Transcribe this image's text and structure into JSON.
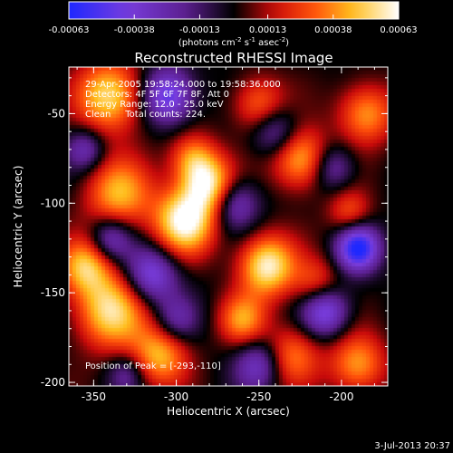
{
  "chart_data": {
    "type": "heatmap",
    "title": "Reconstructed RHESSI Image",
    "xlabel": "Heliocentric X (arcsec)",
    "ylabel": "Heliocentric Y (arcsec)",
    "xlim": [
      -365,
      -172
    ],
    "ylim": [
      -202,
      -24
    ],
    "x_ticks": [
      "-350",
      "-300",
      "-250",
      "-200"
    ],
    "x_tick_values": [
      -350,
      -300,
      -250,
      -200
    ],
    "y_ticks": [
      "-50",
      "-100",
      "-150",
      "-200"
    ],
    "y_tick_values": [
      -50,
      -100,
      -150,
      -200
    ],
    "colorbar": {
      "ticks": [
        "-0.00063",
        "-0.00038",
        "-0.00013",
        "0.00013",
        "0.00038",
        "0.00063"
      ],
      "range": [
        -0.00063,
        0.00063
      ],
      "units_prefix": "(photons cm",
      "units_exp1": "-2",
      "units_mid": " s",
      "units_exp2": "-1",
      "units_mid2": " asec",
      "units_exp3": "-2",
      "units_suffix": ")"
    },
    "annotations": [
      "29-Apr-2005 19:58:24.000 to 19:58:36.000",
      "Detectors: 4F 5F 6F 7F 8F, Att 0",
      "Energy Range: 12.0 - 25.0 keV",
      "Clean     Total counts: 224."
    ],
    "peak_label": "Position of Peak = [-293,-110]",
    "peak_position": [
      -293,
      -110
    ],
    "features": [
      {
        "x": -340,
        "y": -40,
        "v": 0.85,
        "s": 14
      },
      {
        "x": -335,
        "y": -95,
        "v": 0.7,
        "s": 14
      },
      {
        "x": -295,
        "y": -110,
        "v": 1.0,
        "s": 13
      },
      {
        "x": -280,
        "y": -90,
        "v": 0.85,
        "s": 11
      },
      {
        "x": -290,
        "y": -75,
        "v": 0.6,
        "s": 10
      },
      {
        "x": -245,
        "y": -135,
        "v": 0.95,
        "s": 12
      },
      {
        "x": -225,
        "y": -75,
        "v": 0.75,
        "s": 12
      },
      {
        "x": -185,
        "y": -50,
        "v": 0.65,
        "s": 12
      },
      {
        "x": -250,
        "y": -45,
        "v": 0.55,
        "s": 11
      },
      {
        "x": -340,
        "y": -160,
        "v": 0.85,
        "s": 15
      },
      {
        "x": -310,
        "y": -185,
        "v": 0.7,
        "s": 12
      },
      {
        "x": -355,
        "y": -135,
        "v": 0.7,
        "s": 11
      },
      {
        "x": -230,
        "y": -185,
        "v": 0.55,
        "s": 12
      },
      {
        "x": -195,
        "y": -105,
        "v": 0.45,
        "s": 9
      },
      {
        "x": -260,
        "y": -165,
        "v": 0.6,
        "s": 10
      },
      {
        "x": -215,
        "y": -145,
        "v": 0.45,
        "s": 10
      },
      {
        "x": -190,
        "y": -190,
        "v": 0.65,
        "s": 12
      },
      {
        "x": -305,
        "y": -40,
        "v": -0.8,
        "s": 11
      },
      {
        "x": -190,
        "y": -125,
        "v": -1.0,
        "s": 9
      },
      {
        "x": -315,
        "y": -140,
        "v": -0.7,
        "s": 11
      },
      {
        "x": -340,
        "y": -120,
        "v": -0.55,
        "s": 9
      },
      {
        "x": -265,
        "y": -100,
        "v": -0.55,
        "s": 10
      },
      {
        "x": -210,
        "y": -160,
        "v": -0.75,
        "s": 10
      },
      {
        "x": -250,
        "y": -190,
        "v": -0.55,
        "s": 10
      },
      {
        "x": -300,
        "y": -165,
        "v": -0.4,
        "s": 9
      },
      {
        "x": -240,
        "y": -60,
        "v": -0.5,
        "s": 10
      },
      {
        "x": -355,
        "y": -70,
        "v": -0.45,
        "s": 8
      },
      {
        "x": -205,
        "y": -80,
        "v": -0.45,
        "s": 9
      },
      {
        "x": -330,
        "y": -195,
        "v": -0.35,
        "s": 8
      }
    ]
  },
  "footer": {
    "timestamp": "3-Jul-2013 20:37"
  }
}
